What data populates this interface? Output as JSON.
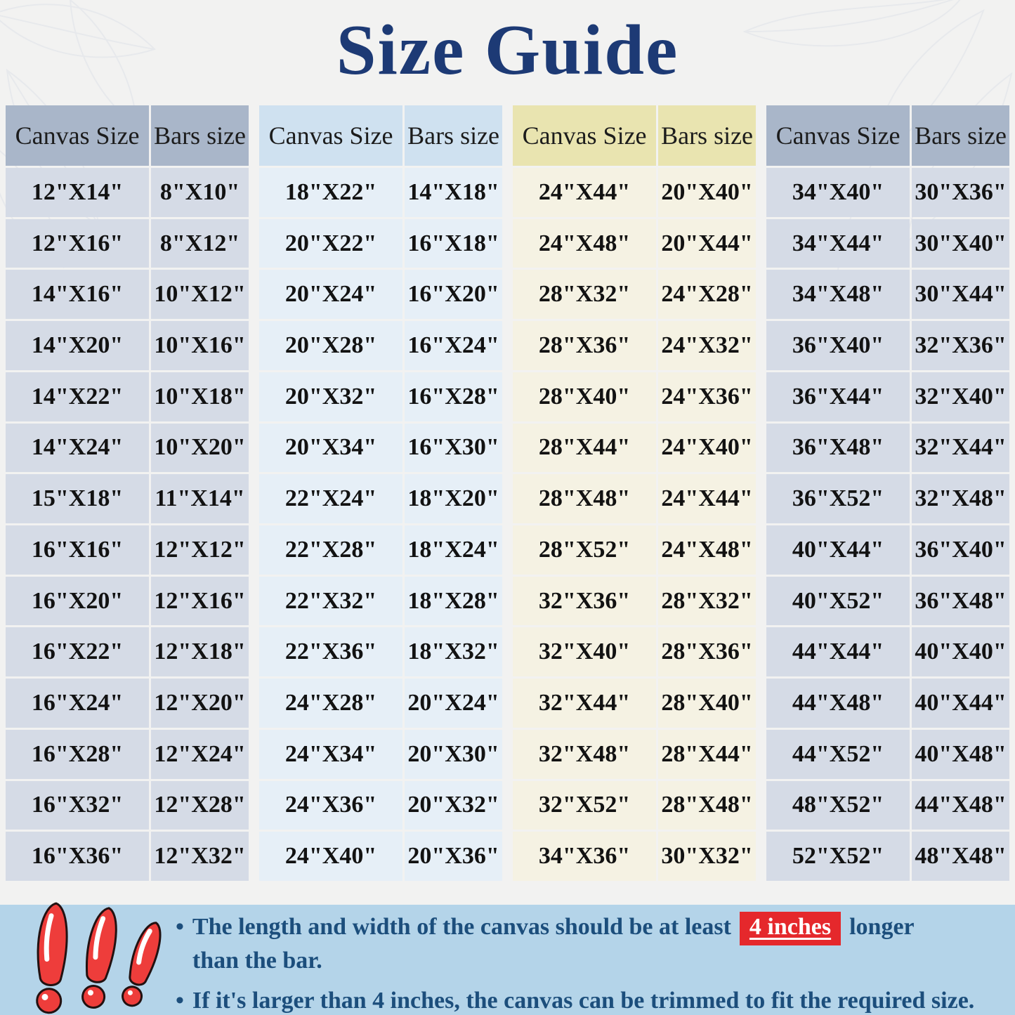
{
  "title": "Size Guide",
  "chart_data": {
    "type": "table",
    "tables": [
      {
        "theme": "slate",
        "headers": [
          "Canvas Size",
          "Bars size"
        ],
        "rows": [
          [
            "12\"X14\"",
            "8\"X10\""
          ],
          [
            "12\"X16\"",
            "8\"X12\""
          ],
          [
            "14\"X16\"",
            "10\"X12\""
          ],
          [
            "14\"X20\"",
            "10\"X16\""
          ],
          [
            "14\"X22\"",
            "10\"X18\""
          ],
          [
            "14\"X24\"",
            "10\"X20\""
          ],
          [
            "15\"X18\"",
            "11\"X14\""
          ],
          [
            "16\"X16\"",
            "12\"X12\""
          ],
          [
            "16\"X20\"",
            "12\"X16\""
          ],
          [
            "16\"X22\"",
            "12\"X18\""
          ],
          [
            "16\"X24\"",
            "12\"X20\""
          ],
          [
            "16\"X28\"",
            "12\"X24\""
          ],
          [
            "16\"X32\"",
            "12\"X28\""
          ],
          [
            "16\"X36\"",
            "12\"X32\""
          ]
        ]
      },
      {
        "theme": "blue",
        "headers": [
          "Canvas Size",
          "Bars size"
        ],
        "rows": [
          [
            "18\"X22\"",
            "14\"X18\""
          ],
          [
            "20\"X22\"",
            "16\"X18\""
          ],
          [
            "20\"X24\"",
            "16\"X20\""
          ],
          [
            "20\"X28\"",
            "16\"X24\""
          ],
          [
            "20\"X32\"",
            "16\"X28\""
          ],
          [
            "20\"X34\"",
            "16\"X30\""
          ],
          [
            "22\"X24\"",
            "18\"X20\""
          ],
          [
            "22\"X28\"",
            "18\"X24\""
          ],
          [
            "22\"X32\"",
            "18\"X28\""
          ],
          [
            "22\"X36\"",
            "18\"X32\""
          ],
          [
            "24\"X28\"",
            "20\"X24\""
          ],
          [
            "24\"X34\"",
            "20\"X30\""
          ],
          [
            "24\"X36\"",
            "20\"X32\""
          ],
          [
            "24\"X40\"",
            "20\"X36\""
          ]
        ]
      },
      {
        "theme": "cream",
        "headers": [
          "Canvas Size",
          "Bars size"
        ],
        "rows": [
          [
            "24\"X44\"",
            "20\"X40\""
          ],
          [
            "24\"X48\"",
            "20\"X44\""
          ],
          [
            "28\"X32\"",
            "24\"X28\""
          ],
          [
            "28\"X36\"",
            "24\"X32\""
          ],
          [
            "28\"X40\"",
            "24\"X36\""
          ],
          [
            "28\"X44\"",
            "24\"X40\""
          ],
          [
            "28\"X48\"",
            "24\"X44\""
          ],
          [
            "28\"X52\"",
            "24\"X48\""
          ],
          [
            "32\"X36\"",
            "28\"X32\""
          ],
          [
            "32\"X40\"",
            "28\"X36\""
          ],
          [
            "32\"X44\"",
            "28\"X40\""
          ],
          [
            "32\"X48\"",
            "28\"X44\""
          ],
          [
            "32\"X52\"",
            "28\"X48\""
          ],
          [
            "34\"X36\"",
            "30\"X32\""
          ]
        ]
      },
      {
        "theme": "slate",
        "headers": [
          "Canvas Size",
          "Bars size"
        ],
        "rows": [
          [
            "34\"X40\"",
            "30\"X36\""
          ],
          [
            "34\"X44\"",
            "30\"X40\""
          ],
          [
            "34\"X48\"",
            "30\"X44\""
          ],
          [
            "36\"X40\"",
            "32\"X36\""
          ],
          [
            "36\"X44\"",
            "32\"X40\""
          ],
          [
            "36\"X48\"",
            "32\"X44\""
          ],
          [
            "36\"X52\"",
            "32\"X48\""
          ],
          [
            "40\"X44\"",
            "36\"X40\""
          ],
          [
            "40\"X52\"",
            "36\"X48\""
          ],
          [
            "44\"X44\"",
            "40\"X40\""
          ],
          [
            "44\"X48\"",
            "40\"X44\""
          ],
          [
            "44\"X52\"",
            "40\"X48\""
          ],
          [
            "48\"X52\"",
            "44\"X48\""
          ],
          [
            "52\"X52\"",
            "48\"X48\""
          ]
        ]
      }
    ]
  },
  "notes": {
    "bullet": "•",
    "note1": {
      "pre": "The length and width of the canvas should be at least",
      "highlight": "4 inches",
      "post": "longer",
      "line2": "than the bar."
    },
    "note2": "If it's larger than 4 inches, the canvas can be trimmed to fit the required size."
  },
  "colors": {
    "page_bg": "#f2f2f1",
    "title": "#1d3a75",
    "leaf_line": "#dfe2e8",
    "slate_header": "#a9b6c9",
    "slate_row": "#d5dbe6",
    "blue_header": "#cfe1f0",
    "blue_row": "#e6eff7",
    "cream_header": "#e9e4b0",
    "cream_row": "#f5f2e3",
    "header_text": "#1c1c1c",
    "cell_text": "#121212",
    "band_bg": "#b4d4e9",
    "note_text": "#1c4e7c",
    "highlight_bg": "#e5282c",
    "highlight_text": "#ffffff",
    "exclaim_red": "#ee3d3b",
    "exclaim_outline": "#221111"
  }
}
